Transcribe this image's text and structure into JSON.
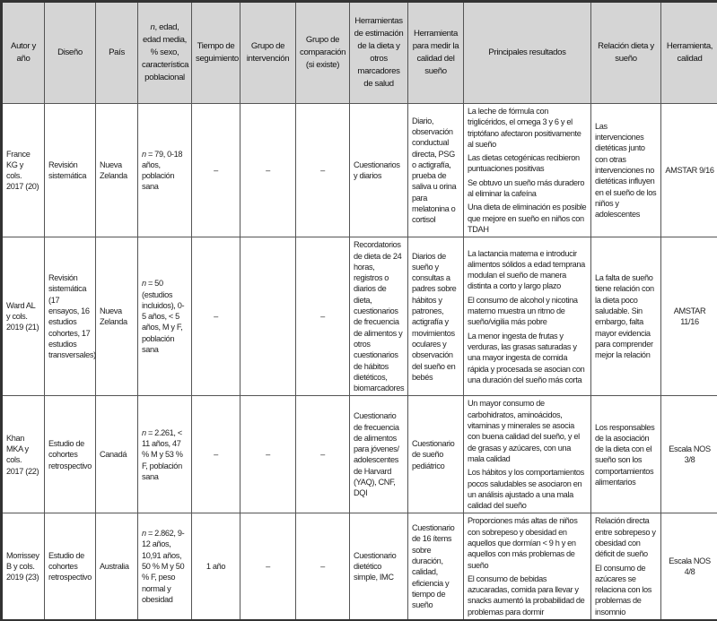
{
  "headers": {
    "autor": "Autor y año",
    "diseno": "Diseño",
    "pais": "País",
    "poblacion_n": "n",
    "poblacion_rest": ", edad, edad media, % sexo, característica poblacional",
    "tiempo": "Tiempo de seguimiento",
    "intervencion": "Grupo de intervención",
    "comparacion": "Grupo de comparación (si existe)",
    "herr_dieta": "Herramientas de estimación de la dieta y otros marcadores de salud",
    "herr_sueno": "Herramienta para medir la calidad del sueño",
    "resultados": "Principales resultados",
    "relacion": "Relación dieta y sueño",
    "calidad": "Herramienta, calidad"
  },
  "rows": [
    {
      "autor": "France KG y cols. 2017 (20)",
      "diseno": "Revisión sistemática",
      "pais": "Nueva Zelanda",
      "pob_n": "n",
      "pob_rest": " = 79, 0-18 años, población sana",
      "tiempo": "–",
      "intervencion": "–",
      "comparacion": "–",
      "herr_dieta": "Cuestionarios y diarios",
      "herr_sueno": "Diario, observación conductual directa, PSG o actigrafía, prueba de saliva u orina para melatonina o cortisol",
      "resultados": [
        "La leche de fórmula con triglicéridos, el omega 3 y 6 y el triptófano afectaron positivamente al sueño",
        "Las dietas cetogénicas recibieron puntuaciones positivas",
        "Se obtuvo un sueño más duradero al eliminar la cafeína",
        "Una dieta de eliminación es posible que mejore en sueño en niños con TDAH"
      ],
      "relacion": [
        "Las intervenciones dietéticas junto con otras intervenciones no dietéticas influyen en el sueño de los niños y adolescentes"
      ],
      "calidad": "AMSTAR 9/16"
    },
    {
      "autor": "Ward AL y cols. 2019 (21)",
      "diseno": "Revisión sistemática (17 ensayos, 16 estudios cohortes, 17 estudios transversales)",
      "pais": "Nueva Zelanda",
      "pob_n": "n",
      "pob_rest": " = 50 (estudios incluidos), 0-5 años, < 5 años, M y F, población sana",
      "tiempo": "–",
      "intervencion": "",
      "comparacion": "–",
      "herr_dieta": "Recordatorios de dieta de 24 horas, registros o diarios de dieta, cuestionarios de frecuencia de alimentos y otros cuestionarios de hábitos dietéticos, biomarcadores",
      "herr_sueno": "Diarios de sueño y consultas a padres sobre hábitos y patrones, actigrafía y movimientos oculares y observación del sueño en bebés",
      "resultados": [
        "La lactancia materna e introducir alimentos sólidos a edad temprana modulan el sueño de manera distinta a corto y largo plazo",
        "El consumo de alcohol y nicotina materno muestra un ritmo de sueño/vigilia más pobre",
        "La menor ingesta de frutas y verduras, las grasas saturadas y una mayor ingesta de comida rápida y procesada se asocian con una duración del sueño más corta"
      ],
      "relacion": [
        "La falta de sueño tiene relación con la dieta poco saludable. Sin embargo, falta mayor evidencia para comprender mejor la relación"
      ],
      "calidad": "AMSTAR 11/16"
    },
    {
      "autor": "Khan MKA y cols. 2017 (22)",
      "diseno": "Estudio de cohortes retrospectivo",
      "pais": "Canadá",
      "pob_n": "n",
      "pob_rest": " = 2.261, < 11 años, 47 % M y 53 % F, población sana",
      "tiempo": "–",
      "intervencion": "–",
      "comparacion": "–",
      "herr_dieta": "Cuestionario de frecuencia de alimentos para jóvenes/ adolescentes de Harvard (YAQ), CNF, DQI",
      "herr_sueno": "Cuestionario de sueño pediátrico",
      "resultados": [
        "Un mayor consumo de carbohidratos, aminoácidos, vitaminas y minerales se asocia con buena calidad del sueño, y el de grasas y azúcares, con una mala calidad",
        "Los hábitos y los comportamientos pocos saludables se asociaron en un análisis ajustado a una mala calidad del sueño"
      ],
      "relacion": [
        "Los responsables de la asociación de la dieta con el sueño son los comportamientos alimentarios"
      ],
      "calidad": "Escala NOS 3/8"
    },
    {
      "autor": "Morrissey B y cols. 2019 (23)",
      "diseno": "Estudio de cohortes retrospectivo",
      "pais": "Australia",
      "pob_n": "n",
      "pob_rest": " = 2.862, 9-12 años, 10,91 años, 50 % M y 50 % F, peso normal y obesidad",
      "tiempo": "1 año",
      "intervencion": "–",
      "comparacion": "–",
      "herr_dieta": "Cuestionario dietético simple, IMC",
      "herr_sueno": "Cuestionario de 16 ítems sobre duración, calidad, eficiencia y tiempo de sueño",
      "resultados": [
        "Proporciones más altas de niños con sobrepeso y obesidad en aquellos que dormían < 9 h y en aquellos con más problemas de sueño",
        "El consumo de bebidas azucaradas, comida para llevar y snacks aumentó la probabilidad de problemas para dormir"
      ],
      "relacion": [
        "Relación directa entre sobrepeso y obesidad con déficit de sueño",
        "El consumo de azúcares se relaciona con los problemas de insomnio"
      ],
      "calidad": "Escala NOS 4/8"
    }
  ]
}
